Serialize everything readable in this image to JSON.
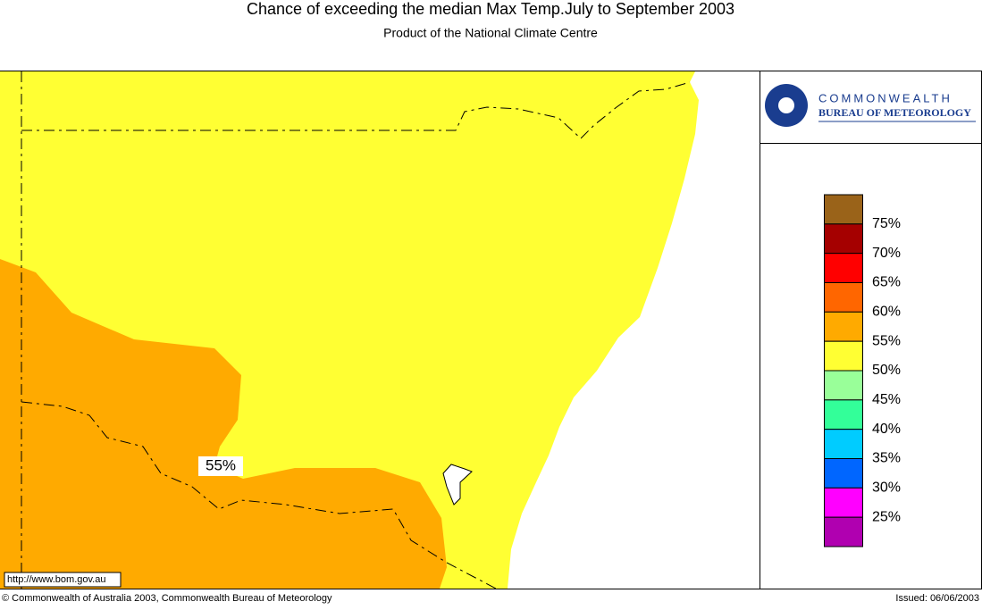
{
  "header": {
    "title": "Chance of exceeding the median Max Temp.July to September 2003",
    "subtitle": "Product of the National Climate Centre"
  },
  "logo": {
    "line1": "COMMONWEALTH",
    "line2": "BUREAU OF METEOROLOGY"
  },
  "map": {
    "contour_label": "55%",
    "url": "http://www.bom.gov.au",
    "land_color": "#ffff33",
    "region_color": "#ffaa00"
  },
  "legend": {
    "colors": [
      "#9a6319",
      "#a50000",
      "#ff0000",
      "#ff6600",
      "#ffaa00",
      "#ffff33",
      "#99ff99",
      "#33ff99",
      "#00ccff",
      "#0066ff",
      "#ff00ff",
      "#b000b0"
    ],
    "labels": [
      "75%",
      "70%",
      "65%",
      "60%",
      "55%",
      "50%",
      "45%",
      "40%",
      "35%",
      "30%",
      "25%"
    ]
  },
  "footer": {
    "copyright": "© Commonwealth of Australia 2003, Commonwealth Bureau of Meteorology",
    "issued": "Issued: 06/06/2003"
  }
}
